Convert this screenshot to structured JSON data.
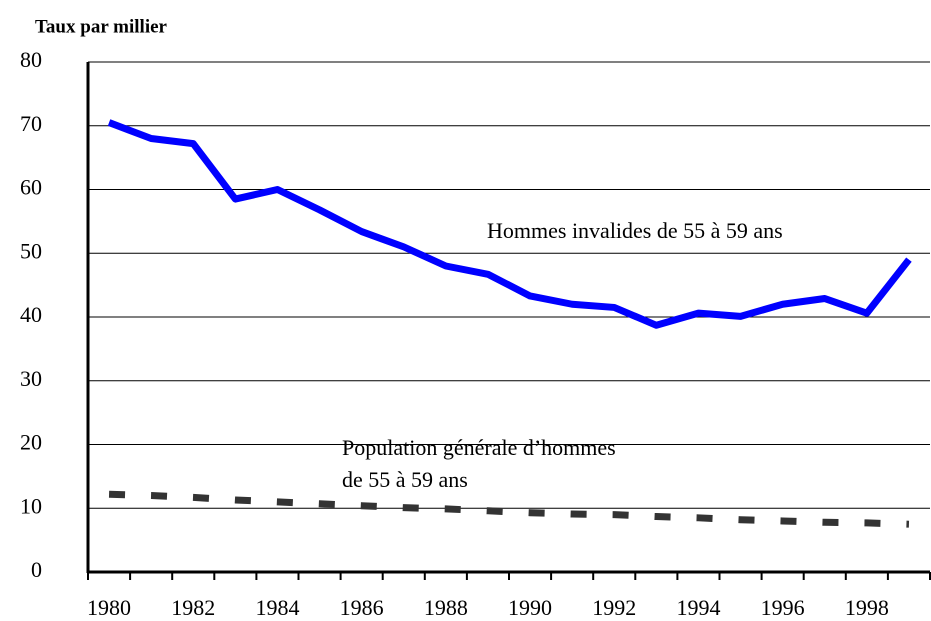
{
  "chart_data": {
    "type": "line",
    "y_label": "Taux par millier",
    "categories": [
      "1980",
      null,
      "1982",
      null,
      "1984",
      null,
      "1986",
      null,
      "1988",
      null,
      "1990",
      null,
      "1992",
      null,
      "1994",
      null,
      "1996",
      null,
      "1998",
      null
    ],
    "series": [
      {
        "color": "#0000ff",
        "style": "solid",
        "values": [
          70.5,
          68,
          67.2,
          58.5,
          60,
          56.8,
          53.4,
          51,
          48,
          46.7,
          43.3,
          42,
          41.5,
          38.7,
          40.6,
          40.1,
          42,
          42.9,
          40.6,
          49
        ]
      },
      {
        "color": "#333333",
        "style": "dashed",
        "values": [
          12.2,
          12,
          11.7,
          11.3,
          11,
          10.7,
          10.4,
          10.1,
          9.9,
          9.6,
          9.3,
          9.1,
          9.0,
          8.7,
          8.5,
          8.2,
          8.0,
          7.8,
          7.7,
          7.5
        ]
      }
    ],
    "annotations": [
      {
        "lines": [
          "Hommes invalides de 55 à 59 ans"
        ]
      },
      {
        "lines": [
          "Population générale d’hommes",
          "de 55 à 59 ans"
        ]
      }
    ],
    "ylim": [
      0,
      80
    ],
    "yticks": [
      0,
      10,
      20,
      30,
      40,
      50,
      60,
      70,
      80
    ],
    "grid": true
  }
}
